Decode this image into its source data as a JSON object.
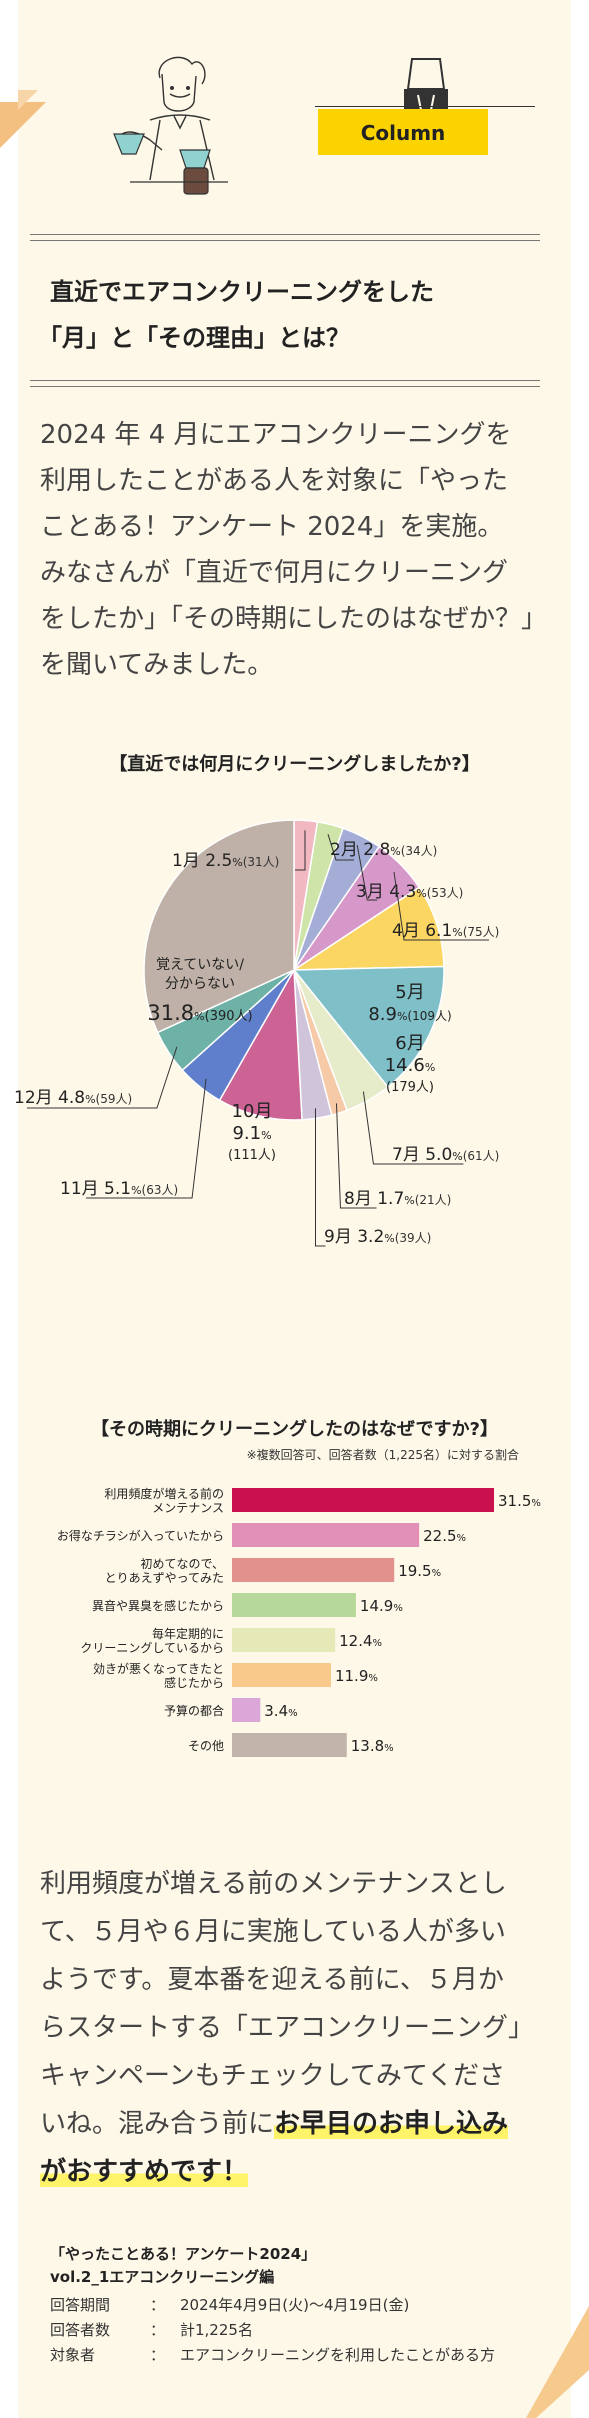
{
  "header": {
    "badge_label": "Column",
    "title_line1": "直近でエアコンクリーニングをした",
    "title_line2": "「月」と「その理由」とは？"
  },
  "intro": {
    "lines": [
      "2024 年 4 月にエアコンクリーニングを",
      "利用したことがある人を対象に「やった",
      "ことある！アンケート 2024」を実施。",
      "みなさんが「直近で何月にクリーニング",
      "をしたか」「その時期にしたのはなぜか？」",
      "を聞いてみました。"
    ]
  },
  "chart_data": [
    {
      "type": "pie",
      "title": "【直近では何月にクリーニングしましたか?】",
      "slices": [
        {
          "label": "1月",
          "percent": 2.5,
          "count": 31,
          "count_text": "(31人)",
          "color": "#f2b8c2"
        },
        {
          "label": "2月",
          "percent": 2.8,
          "count": 34,
          "count_text": "(34人)",
          "color": "#cfe4a8"
        },
        {
          "label": "3月",
          "percent": 4.3,
          "count": 53,
          "count_text": "(53人)",
          "color": "#a3add6"
        },
        {
          "label": "4月",
          "percent": 6.1,
          "count": 75,
          "count_text": "(75人)",
          "color": "#d697c9"
        },
        {
          "label": "5月",
          "percent": 8.9,
          "count": 109,
          "count_text": "(109人)",
          "color": "#fbd663"
        },
        {
          "label": "6月",
          "percent": 14.6,
          "count": 179,
          "count_text": "(179人)",
          "color": "#7fbfc7"
        },
        {
          "label": "7月",
          "percent": 5.0,
          "count": 61,
          "count_text": "(61人)",
          "color": "#e6ebc9"
        },
        {
          "label": "8月",
          "percent": 1.7,
          "count": 21,
          "count_text": "(21人)",
          "color": "#f6c9a7"
        },
        {
          "label": "9月",
          "percent": 3.2,
          "count": 39,
          "count_text": "(39人)",
          "color": "#cfc4d9"
        },
        {
          "label": "10月",
          "percent": 9.1,
          "count": 111,
          "count_text": "(111人)",
          "color": "#cc6394"
        },
        {
          "label": "11月",
          "percent": 5.1,
          "count": 63,
          "count_text": "(63人)",
          "color": "#5f7fcc"
        },
        {
          "label": "12月",
          "percent": 4.8,
          "count": 59,
          "count_text": "(59人)",
          "color": "#6db1a7"
        },
        {
          "label": "覚えていない/分からない",
          "label_line1": "覚えていない/",
          "label_line2": "分からない",
          "percent": 31.8,
          "count": 390,
          "count_text": "(390人)",
          "color": "#bfb1a8"
        }
      ],
      "percent_unit": "%"
    },
    {
      "type": "bar",
      "orientation": "horizontal",
      "title": "【その時期にクリーニングしたのはなぜですか?】",
      "subtitle": "※複数回答可、回答者数（1,225名）に対する割合",
      "value_unit": "%",
      "xlim": [
        0,
        31.5
      ],
      "categories": [
        [
          "利用頻度が増える前の",
          "メンテナンス"
        ],
        [
          "お得なチラシが入っていたから"
        ],
        [
          "初めてなので、",
          "とりあえずやってみた"
        ],
        [
          "異音や異臭を感じたから"
        ],
        [
          "毎年定期的に",
          "クリーニングしているから"
        ],
        [
          "効きが悪くなってきたと",
          "感じたから"
        ],
        [
          "予算の都合"
        ],
        [
          "その他"
        ]
      ],
      "values": [
        31.5,
        22.5,
        19.5,
        14.9,
        12.4,
        11.9,
        3.4,
        13.8
      ],
      "colors": [
        "#c8114e",
        "#e390b8",
        "#e2918c",
        "#b6d89a",
        "#e5e9b7",
        "#f8c98a",
        "#dba7d9",
        "#c3b4ab"
      ]
    }
  ],
  "conclusion": {
    "lines": [
      "利用頻度が増える前のメンテナンスとし",
      "て、５月や６月に実施している人が多い",
      "ようです。夏本番を迎える前に、５月か",
      "らスタートする「エアコンクリーニング」",
      "キャンペーンもチェックしてみてくださ"
    ],
    "line6_plain": "いね。混み合う前に",
    "line6_highlight": "お早目のお申し込み",
    "line7_highlight": "がおすすめです！"
  },
  "footer": {
    "survey_title": "「やったことある！アンケート2024」",
    "survey_subtitle": "vol.2_1エアコンクリーニング編",
    "rows": [
      {
        "key": "回答期間",
        "sep": "：",
        "value": "2024年4月9日(火)〜4月19日(金)"
      },
      {
        "key": "回答者数",
        "sep": "：",
        "value": "計1,225名"
      },
      {
        "key": "対象者",
        "sep": "：",
        "value": "エアコンクリーニングを利用したことがある方"
      }
    ]
  },
  "colors": {
    "panel_bg": "#fdf8e8",
    "badge_yellow": "#fbd300",
    "corner_orange": "#f4c082",
    "highlight_yellow": "#fff36a"
  }
}
